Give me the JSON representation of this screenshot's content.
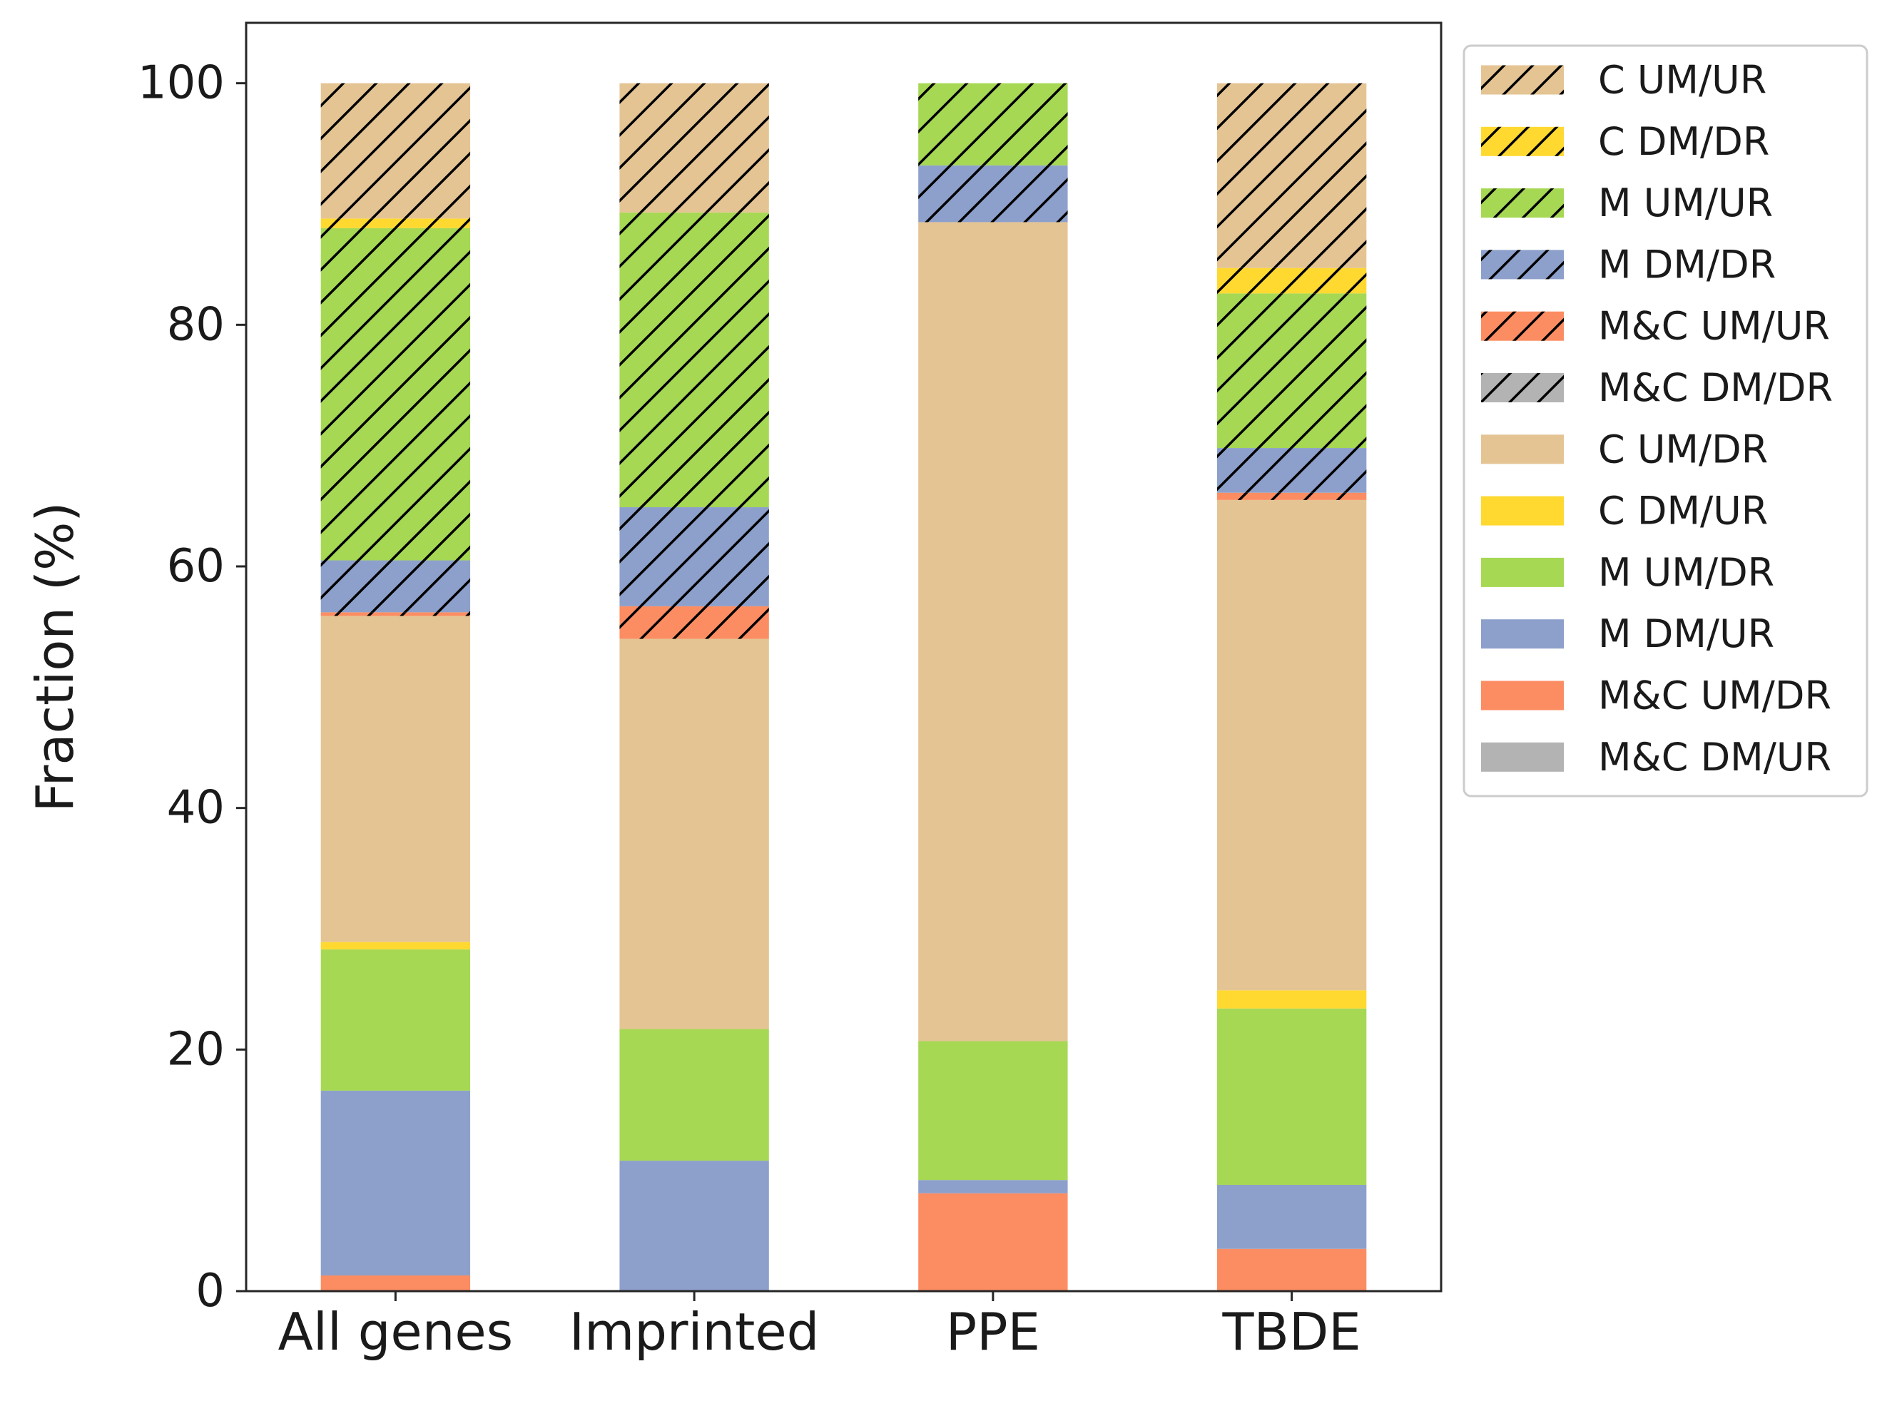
{
  "chart_data": {
    "type": "bar",
    "stacked": true,
    "title": "",
    "xlabel": "",
    "ylabel": "Fraction (%)",
    "ylim": [
      0,
      105
    ],
    "yticks": [
      0,
      20,
      40,
      60,
      80,
      100
    ],
    "grid": false,
    "legend_position": "outside-top-right",
    "categories": [
      "All genes",
      "Imprinted",
      "PPE",
      "TBDE"
    ],
    "series": [
      {
        "name": "M&C DM/UR",
        "color": "#b3b3b3",
        "hatch": false,
        "values": [
          0.0,
          0.0,
          0.0,
          0.0
        ]
      },
      {
        "name": "M&C UM/DR",
        "color": "#fc8d62",
        "hatch": false,
        "values": [
          1.3,
          0.0,
          8.1,
          3.5
        ]
      },
      {
        "name": "M DM/UR",
        "color": "#8da0cb",
        "hatch": false,
        "values": [
          15.3,
          10.8,
          1.1,
          5.3
        ]
      },
      {
        "name": "M UM/DR",
        "color": "#a6d854",
        "hatch": false,
        "values": [
          11.7,
          10.9,
          11.5,
          14.6
        ]
      },
      {
        "name": "C DM/UR",
        "color": "#ffd92f",
        "hatch": false,
        "values": [
          0.6,
          0.0,
          0.0,
          1.5
        ]
      },
      {
        "name": "C UM/DR",
        "color": "#e5c494",
        "hatch": false,
        "values": [
          27.0,
          32.3,
          67.8,
          40.6
        ]
      },
      {
        "name": "M&C DM/DR",
        "color": "#b3b3b3",
        "hatch": true,
        "values": [
          0.0,
          0.0,
          0.0,
          0.0
        ]
      },
      {
        "name": "M&C UM/UR",
        "color": "#fc8d62",
        "hatch": true,
        "values": [
          0.3,
          2.7,
          0.0,
          0.6
        ]
      },
      {
        "name": "M DM/DR",
        "color": "#8da0cb",
        "hatch": true,
        "values": [
          4.3,
          8.2,
          4.7,
          3.7
        ]
      },
      {
        "name": "M UM/UR",
        "color": "#a6d854",
        "hatch": true,
        "values": [
          27.5,
          24.4,
          6.8,
          12.8
        ]
      },
      {
        "name": "C DM/DR",
        "color": "#ffd92f",
        "hatch": true,
        "values": [
          0.8,
          0.0,
          0.0,
          2.1
        ]
      },
      {
        "name": "C UM/UR",
        "color": "#e5c494",
        "hatch": true,
        "values": [
          11.2,
          10.7,
          0.0,
          15.3
        ]
      }
    ],
    "legend_order": [
      "C UM/UR",
      "C DM/DR",
      "M UM/UR",
      "M DM/DR",
      "M&C UM/UR",
      "M&C DM/DR",
      "C UM/DR",
      "C DM/UR",
      "M UM/DR",
      "M DM/UR",
      "M&C UM/DR",
      "M&C DM/UR"
    ]
  }
}
